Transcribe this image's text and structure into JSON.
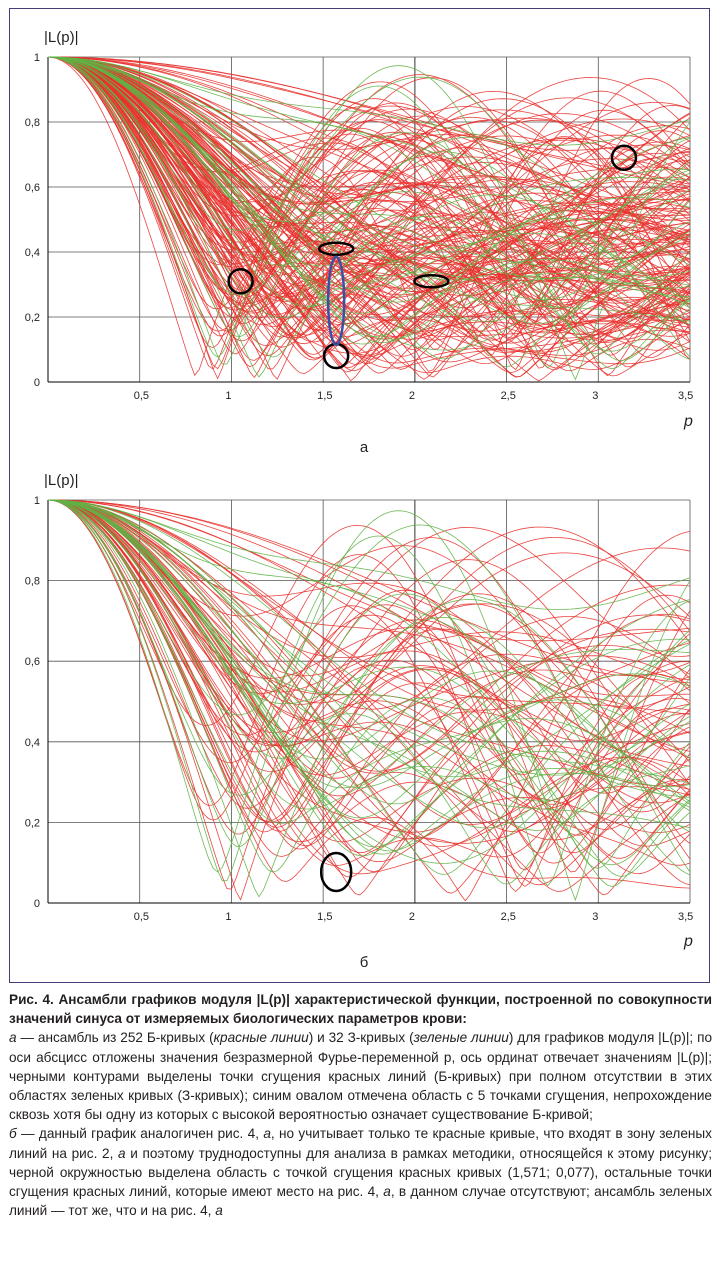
{
  "panels": [
    {
      "id": "a",
      "chart_data": {
        "type": "line",
        "title": "",
        "ylabel": "|L(p)|",
        "xlabel": "p",
        "panel_label": "а",
        "xlim": [
          0,
          3.5
        ],
        "ylim": [
          0,
          1
        ],
        "x_ticks": [
          "0,5",
          "1",
          "1,5",
          "2",
          "2,5",
          "3",
          "3,5"
        ],
        "y_ticks": [
          "0",
          "0,2",
          "0,4",
          "0,6",
          "0,8",
          "1"
        ],
        "grid": true,
        "series": [
          {
            "color_role": "red",
            "count": 252,
            "value_range": [
              0,
              1
            ]
          },
          {
            "color_role": "green",
            "count": 32,
            "value_range": [
              0,
              1
            ]
          }
        ],
        "annotations": [
          {
            "shape": "circle",
            "color": "#000000",
            "x": 1.05,
            "y": 0.31
          },
          {
            "shape": "ellipse",
            "color": "#000000",
            "x": 1.571,
            "y": 0.41
          },
          {
            "shape": "circle",
            "color": "#000000",
            "x": 1.571,
            "y": 0.08
          },
          {
            "shape": "ellipse",
            "color": "#3b4fa8",
            "x": 1.571,
            "y": 0.25
          },
          {
            "shape": "ellipse",
            "color": "#000000",
            "x": 2.09,
            "y": 0.31
          },
          {
            "shape": "circle",
            "color": "#000000",
            "x": 3.14,
            "y": 0.69
          }
        ]
      }
    },
    {
      "id": "b",
      "chart_data": {
        "type": "line",
        "title": "",
        "ylabel": "|L(p)|",
        "xlabel": "p",
        "panel_label": "б",
        "xlim": [
          0,
          3.5
        ],
        "ylim": [
          0,
          1
        ],
        "x_ticks": [
          "0,5",
          "1",
          "1,5",
          "2",
          "2,5",
          "3",
          "3,5"
        ],
        "y_ticks": [
          "0",
          "0,2",
          "0,4",
          "0,6",
          "0,8",
          "1"
        ],
        "grid": true,
        "series": [
          {
            "color_role": "red",
            "value_range": [
              0,
              1
            ]
          },
          {
            "color_role": "green",
            "count": 32,
            "value_range": [
              0,
              1
            ]
          }
        ],
        "annotations": [
          {
            "shape": "circle",
            "color": "#000000",
            "x": 1.571,
            "y": 0.077
          }
        ]
      }
    }
  ],
  "colors": {
    "red": "#e8322d",
    "green": "#5fb246",
    "frame": "#4b3a7a",
    "grid": "#555555"
  },
  "caption": {
    "title": "Рис. 4. Ансамбли графиков модуля |L(p)| характеристической функции, построенной по совокупности значений синуса от измеряемых биологических параметров крови:",
    "a_letter": "а",
    "a_text_1": " — ансамбль из 252 Б-кривых (",
    "a_red": "красные линии",
    "a_text_2": ") и 32 З-кривых (",
    "a_green": "зеленые линии",
    "a_text_3": ") для графиков модуля |L(p)|; по оси абсцисс отложены значения безразмерной Фурье-переменной p, ось ординат отвечает значениям |L(p)|; черными контурами выделены точки сгущения красных линий (Б-кривых) при полном отсутствии в этих областях зеленых кривых (З-кривых); синим овалом отмечена область с 5 точками сгущения, непрохождение сквозь хотя бы одну из которых с высокой вероятностью означает существование Б-кривой;",
    "b_letter": "б",
    "b_text_1": " — данный график аналогичен рис. 4, ",
    "b_ref_a": "а",
    "b_text_2": ", но учитывает только те красные кривые, что входят в зону зеленых линий на рис. 2, ",
    "b_ref_a2": "а",
    "b_text_3": " и поэтому труднодоступны для анализа в рамках методики, относящейся к этому рисунку; черной окружностью выделена область с точкой сгущения красных кривых (1,571; 0,077), остальные точки сгущения красных линий, которые имеют место на рис. 4, ",
    "b_ref_a3": "а",
    "b_text_4": ", в данном случае отсутствуют; ансамбль зеленых линий — тот же, что и на рис. 4, ",
    "b_ref_a4": "а"
  }
}
